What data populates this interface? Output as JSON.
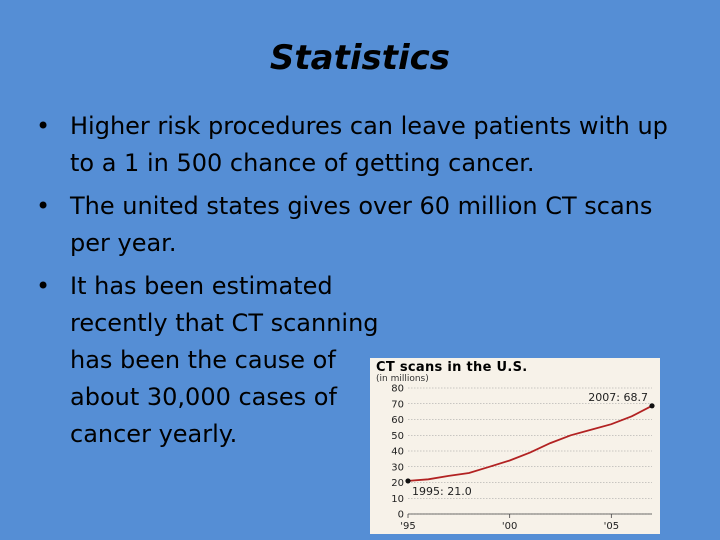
{
  "slide": {
    "title": "Statistics",
    "bullet_char": "•",
    "bullets": [
      "Higher risk procedures can leave patients with up to a 1 in 500 chance of getting cancer.",
      "The united states gives over 60 million CT scans per year.",
      "It has been estimated recently that CT scanning has been the cause of about 30,000 cases of cancer yearly."
    ]
  },
  "chart_data": {
    "type": "line",
    "title": "CT scans in the U.S.",
    "subtitle": "(in millions)",
    "ylim": [
      0,
      80
    ],
    "yticks": [
      0,
      10,
      20,
      30,
      40,
      50,
      60,
      70,
      80
    ],
    "xlim": [
      1995,
      2007
    ],
    "xticks": [
      1995,
      2000,
      2005
    ],
    "xtick_labels": [
      "'95",
      "'00",
      "'05"
    ],
    "grid": true,
    "line_color": "#B22222",
    "x": [
      1995,
      1996,
      1997,
      1998,
      1999,
      2000,
      2001,
      2002,
      2003,
      2004,
      2005,
      2006,
      2007
    ],
    "values": [
      21.0,
      22.0,
      24.2,
      26.0,
      30.0,
      34.0,
      39.0,
      45.0,
      50.0,
      53.5,
      57.0,
      62.0,
      68.7
    ],
    "annotations": [
      {
        "label": "1995: 21.0",
        "x": 1995,
        "y": 21.0
      },
      {
        "label": "2007: 68.7",
        "x": 2007,
        "y": 68.7
      }
    ]
  }
}
